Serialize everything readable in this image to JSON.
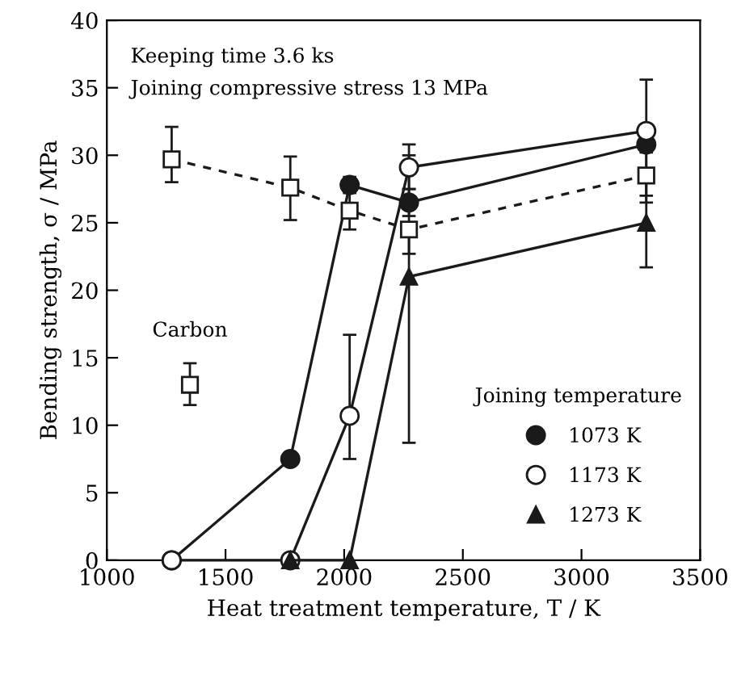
{
  "chart_data": {
    "type": "line",
    "xlabel": "Heat treatment temperature, T / K",
    "ylabel": "Bending strength, σ / MPa",
    "legend_title": "Joining temperature",
    "legend": "bottom right",
    "grid": false,
    "xlim": [
      1000,
      3500
    ],
    "xticks": [
      1000,
      1500,
      2000,
      2500,
      3000,
      3500
    ],
    "ylim": [
      0,
      40
    ],
    "yticks": [
      0,
      5,
      10,
      15,
      20,
      25,
      30,
      35,
      40
    ],
    "annotations": [
      "Keeping time 3.6 ks",
      "Joining compressive stress 13 MPa"
    ],
    "series": [
      {
        "name": "1073 K",
        "marker": "circle",
        "color": "#1a1a1a",
        "line_style": "solid",
        "x": [
          1273,
          1773,
          2023,
          2273,
          3273
        ],
        "values": [
          0,
          7.5,
          27.8,
          26.5,
          30.8
        ],
        "errors": [
          null,
          null,
          [
            27.2,
            28.4
          ],
          [
            25.5,
            27.5
          ],
          [
            30.2,
            31.4
          ]
        ]
      },
      {
        "name": "1173 K",
        "marker": "circle",
        "color": "#ffffff",
        "line_style": "solid",
        "x": [
          1273,
          1773,
          2023,
          2273,
          3273
        ],
        "values": [
          0,
          0,
          10.7,
          29.1,
          31.8
        ],
        "errors": [
          null,
          null,
          [
            7.5,
            16.7
          ],
          [
            27.5,
            30.8
          ],
          [
            27.0,
            35.6
          ]
        ]
      },
      {
        "name": "1273 K",
        "marker": "triangle",
        "color": "#1a1a1a",
        "line_style": "solid",
        "x": [
          1773,
          2023,
          2273,
          3273
        ],
        "values": [
          0,
          0,
          21.0,
          25.0
        ],
        "errors": [
          null,
          null,
          [
            8.7,
            30.0
          ],
          [
            21.7,
            28.0
          ]
        ]
      },
      {
        "marker": "square",
        "color": "#ffffff",
        "line_style": "dashed",
        "x": [
          1273,
          1773,
          2023,
          2273,
          3273
        ],
        "values": [
          29.7,
          27.6,
          25.9,
          24.5,
          28.5
        ],
        "errors": [
          [
            28.0,
            32.1
          ],
          [
            25.2,
            29.9
          ],
          [
            24.5,
            27.3
          ],
          [
            22.7,
            24.5
          ],
          [
            26.5,
            31.0
          ]
        ]
      },
      {
        "name": "Carbon",
        "type": "scatter",
        "marker": "square",
        "color": "#ffffff",
        "x": [
          1350
        ],
        "values": [
          13.0
        ],
        "errors": [
          [
            11.5,
            14.6
          ]
        ]
      }
    ]
  }
}
